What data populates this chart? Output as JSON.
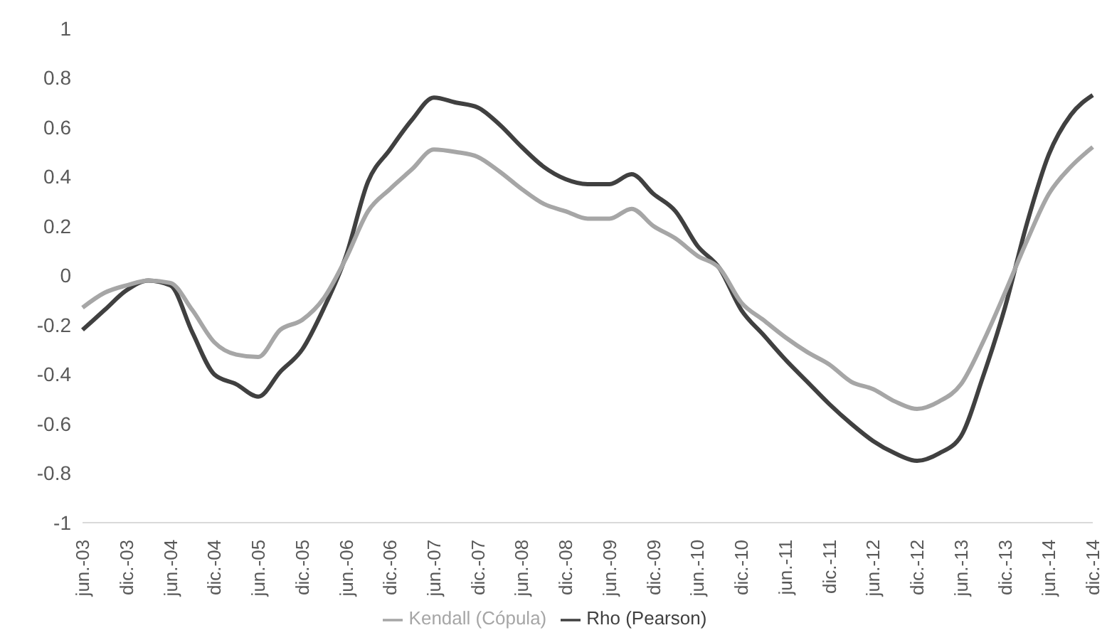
{
  "chart_data": {
    "type": "line",
    "categories": [
      "jun.-03",
      null,
      "dic.-03",
      null,
      "jun.-04",
      null,
      "dic.-04",
      null,
      "jun.-05",
      null,
      "dic.-05",
      null,
      "jun.-06",
      null,
      "dic.-06",
      null,
      "jun.-07",
      null,
      "dic.-07",
      null,
      "jun.-08",
      null,
      "dic.-08",
      null,
      "jun.-09",
      null,
      "dic.-09",
      null,
      "jun.-10",
      null,
      "dic.-10",
      null,
      "jun.-11",
      null,
      "dic.-11",
      null,
      "jun.-12",
      null,
      "dic.-12",
      null,
      "jun.-13",
      null,
      "dic.-13",
      null,
      "jun.-14",
      null,
      "dic.-14"
    ],
    "series": [
      {
        "name": "Rho (Pearson)",
        "color": "#404040",
        "values": [
          -0.22,
          -0.14,
          -0.06,
          -0.02,
          -0.04,
          -0.23,
          -0.4,
          -0.44,
          -0.49,
          -0.39,
          -0.3,
          -0.13,
          0.08,
          0.38,
          0.51,
          0.63,
          0.72,
          0.7,
          0.68,
          0.61,
          0.52,
          0.44,
          0.39,
          0.37,
          0.37,
          0.41,
          0.33,
          0.26,
          0.12,
          0.03,
          -0.14,
          -0.24,
          -0.34,
          -0.43,
          -0.52,
          -0.6,
          -0.67,
          -0.72,
          -0.75,
          -0.72,
          -0.65,
          -0.41,
          -0.13,
          0.21,
          0.49,
          0.65,
          0.73
        ]
      },
      {
        "name": "Kendall (Cópula)",
        "color": "#a6a6a6",
        "values": [
          -0.13,
          -0.07,
          -0.04,
          -0.02,
          -0.03,
          -0.14,
          -0.27,
          -0.32,
          -0.33,
          -0.22,
          -0.18,
          -0.09,
          0.07,
          0.26,
          0.35,
          0.43,
          0.51,
          0.5,
          0.48,
          0.42,
          0.35,
          0.29,
          0.26,
          0.23,
          0.23,
          0.27,
          0.2,
          0.15,
          0.08,
          0.03,
          -0.11,
          -0.18,
          -0.25,
          -0.31,
          -0.36,
          -0.43,
          -0.46,
          -0.51,
          -0.54,
          -0.51,
          -0.44,
          -0.27,
          -0.07,
          0.14,
          0.33,
          0.44,
          0.52
        ]
      }
    ],
    "ylim": [
      -1,
      1
    ],
    "yticks": [
      -1,
      -0.8,
      -0.6,
      -0.4,
      -0.2,
      0,
      0.2,
      0.4,
      0.6,
      0.8,
      1
    ],
    "grid": false,
    "legend": "bottom",
    "marker": "none",
    "line_style": "solid"
  }
}
